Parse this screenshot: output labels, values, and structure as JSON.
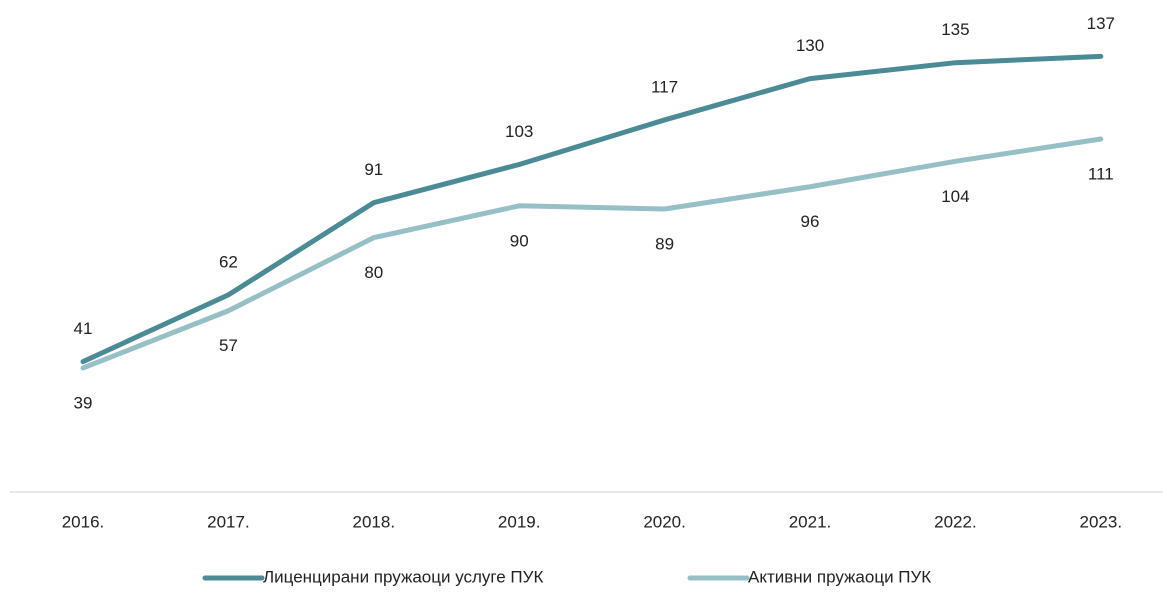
{
  "chart_data": {
    "type": "line",
    "categories": [
      "2016.",
      "2017.",
      "2018.",
      "2019.",
      "2020.",
      "2021.",
      "2022.",
      "2023."
    ],
    "series": [
      {
        "name": "Лиценцирани пружаоци услуге ПУК",
        "color": "#4b8b95",
        "values": [
          41,
          62,
          91,
          103,
          117,
          130,
          135,
          137
        ]
      },
      {
        "name": "Активни пружаоци ПУК",
        "color": "#96c0c5",
        "values": [
          39,
          57,
          80,
          90,
          89,
          96,
          104,
          111
        ]
      }
    ],
    "ylim": [
      0,
      150
    ]
  }
}
